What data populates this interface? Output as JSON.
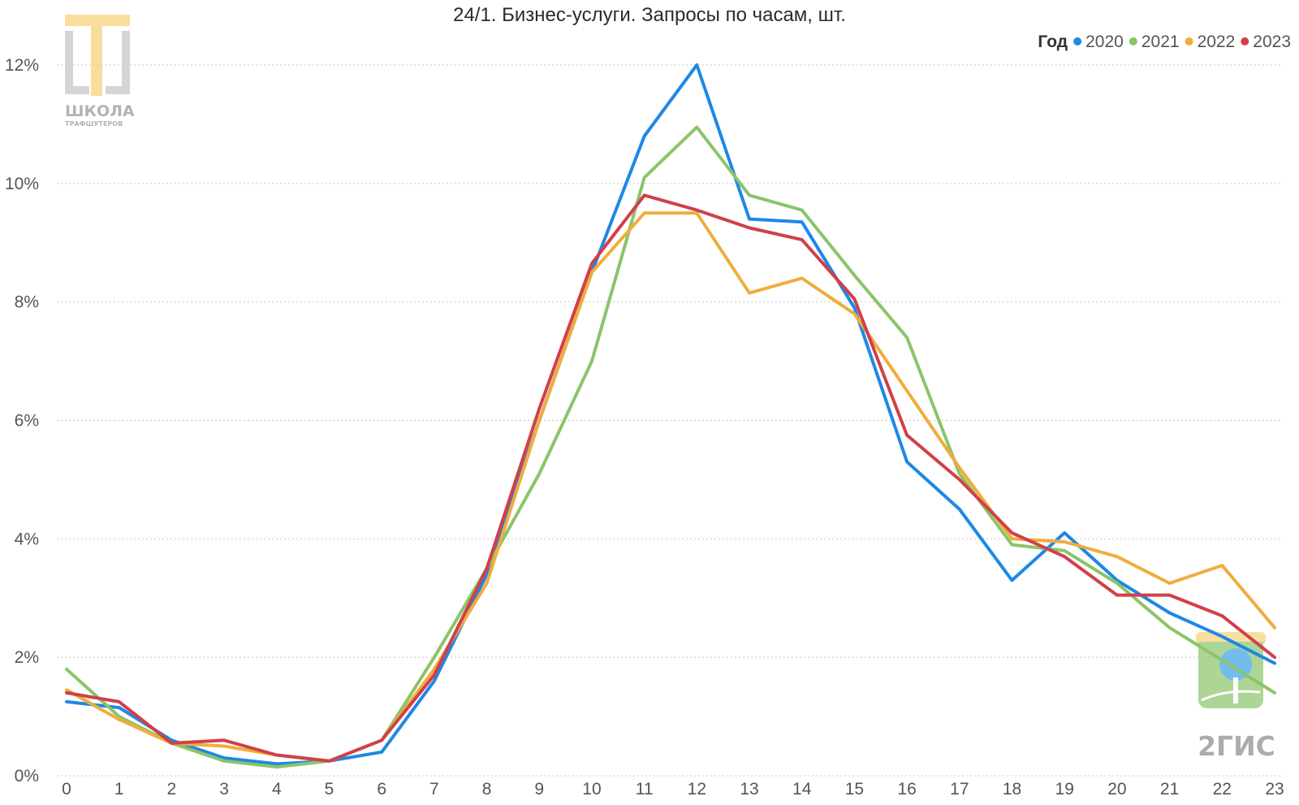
{
  "logos": {
    "school_main": "ШКОЛА",
    "school_sub": "ТРАФШУТЕРОВ",
    "brand": "2ГИС"
  },
  "chart_data": {
    "type": "line",
    "title": "24/1. Бизнес-услуги. Запросы по часам, шт.",
    "xlabel": "",
    "ylabel": "",
    "categories": [
      "0",
      "1",
      "2",
      "3",
      "4",
      "5",
      "6",
      "7",
      "8",
      "9",
      "10",
      "11",
      "12",
      "13",
      "14",
      "15",
      "16",
      "17",
      "18",
      "19",
      "20",
      "21",
      "22",
      "23"
    ],
    "ylim": [
      0,
      12
    ],
    "yticks": [
      0,
      2,
      4,
      6,
      8,
      10,
      12
    ],
    "ytick_labels": [
      "0%",
      "2%",
      "4%",
      "6%",
      "8%",
      "10%",
      "12%"
    ],
    "grid": true,
    "legend": {
      "title": "Год",
      "placement": "top-right"
    },
    "series": [
      {
        "name": "2020",
        "color": "#1e88e5",
        "values": [
          1.25,
          1.15,
          0.6,
          0.3,
          0.2,
          0.25,
          0.4,
          1.6,
          3.4,
          6.0,
          8.5,
          10.8,
          12.0,
          9.4,
          9.35,
          7.9,
          5.3,
          4.5,
          3.3,
          4.1,
          3.3,
          2.75,
          2.35,
          1.9
        ]
      },
      {
        "name": "2021",
        "color": "#8bc46a",
        "values": [
          1.8,
          1.0,
          0.55,
          0.25,
          0.15,
          0.25,
          0.6,
          2.0,
          3.5,
          5.1,
          7.0,
          10.1,
          10.95,
          9.8,
          9.55,
          8.45,
          7.4,
          5.1,
          3.9,
          3.8,
          3.25,
          2.5,
          1.95,
          1.4
        ]
      },
      {
        "name": "2022",
        "color": "#f0ad3c",
        "values": [
          1.45,
          0.95,
          0.55,
          0.5,
          0.35,
          0.25,
          0.6,
          1.8,
          3.25,
          6.0,
          8.5,
          9.5,
          9.5,
          8.15,
          8.4,
          7.8,
          6.5,
          5.2,
          4.0,
          3.95,
          3.7,
          3.25,
          3.55,
          2.5
        ]
      },
      {
        "name": "2023",
        "color": "#d0404a",
        "values": [
          1.4,
          1.25,
          0.55,
          0.6,
          0.35,
          0.25,
          0.6,
          1.7,
          3.5,
          6.2,
          8.65,
          9.8,
          9.55,
          9.25,
          9.05,
          8.05,
          5.75,
          5.0,
          4.1,
          3.7,
          3.05,
          3.05,
          2.7,
          2.0
        ]
      }
    ]
  }
}
